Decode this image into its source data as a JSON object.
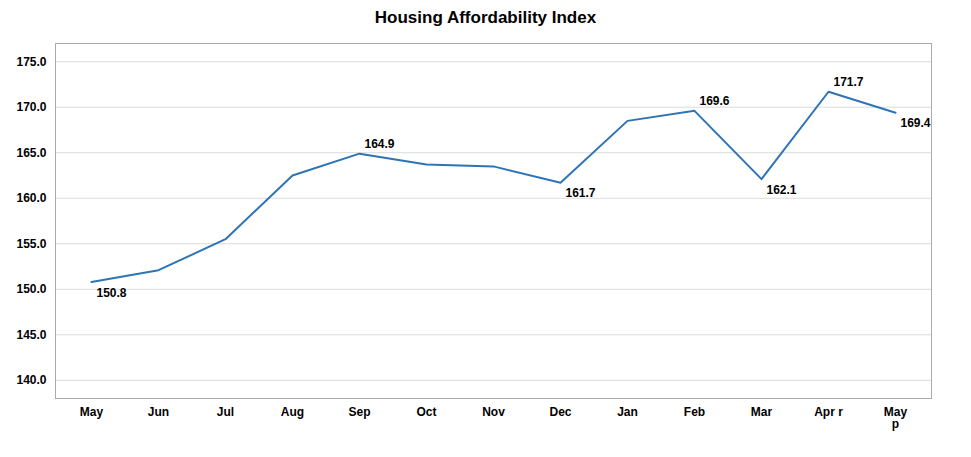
{
  "chart_data": {
    "type": "line",
    "title": "Housing Affordability Index",
    "categories": [
      "May",
      "Jun",
      "Jul",
      "Aug",
      "Sep",
      "Oct",
      "Nov",
      "Dec",
      "Jan",
      "Feb",
      "Mar",
      "Apr r",
      "May\np"
    ],
    "values": [
      150.8,
      152.1,
      155.5,
      162.5,
      164.9,
      163.7,
      163.5,
      161.7,
      168.5,
      169.6,
      162.1,
      171.7,
      169.4
    ],
    "color": "#2E74B5",
    "ylim": [
      138.0,
      177.0
    ],
    "yticks": [
      {
        "value": 140,
        "label": "140.0"
      },
      {
        "value": 145,
        "label": "145.0"
      },
      {
        "value": 150,
        "label": "150.0"
      },
      {
        "value": 155,
        "label": "155.0"
      },
      {
        "value": 160,
        "label": "160.0"
      },
      {
        "value": 165,
        "label": "165.0"
      },
      {
        "value": 170,
        "label": "170.0"
      },
      {
        "value": 175,
        "label": "175.0"
      }
    ],
    "grid": true,
    "annotations": [
      {
        "x": "May",
        "text": "150.8"
      },
      {
        "x": "Sep",
        "text": "164.9"
      },
      {
        "x": "Dec",
        "text": "161.7"
      },
      {
        "x": "Feb",
        "text": "169.6"
      },
      {
        "x": "Mar",
        "text": "162.1"
      },
      {
        "x": "Apr r",
        "text": "171.7"
      },
      {
        "x": "May\np",
        "text": "169.4"
      }
    ]
  }
}
